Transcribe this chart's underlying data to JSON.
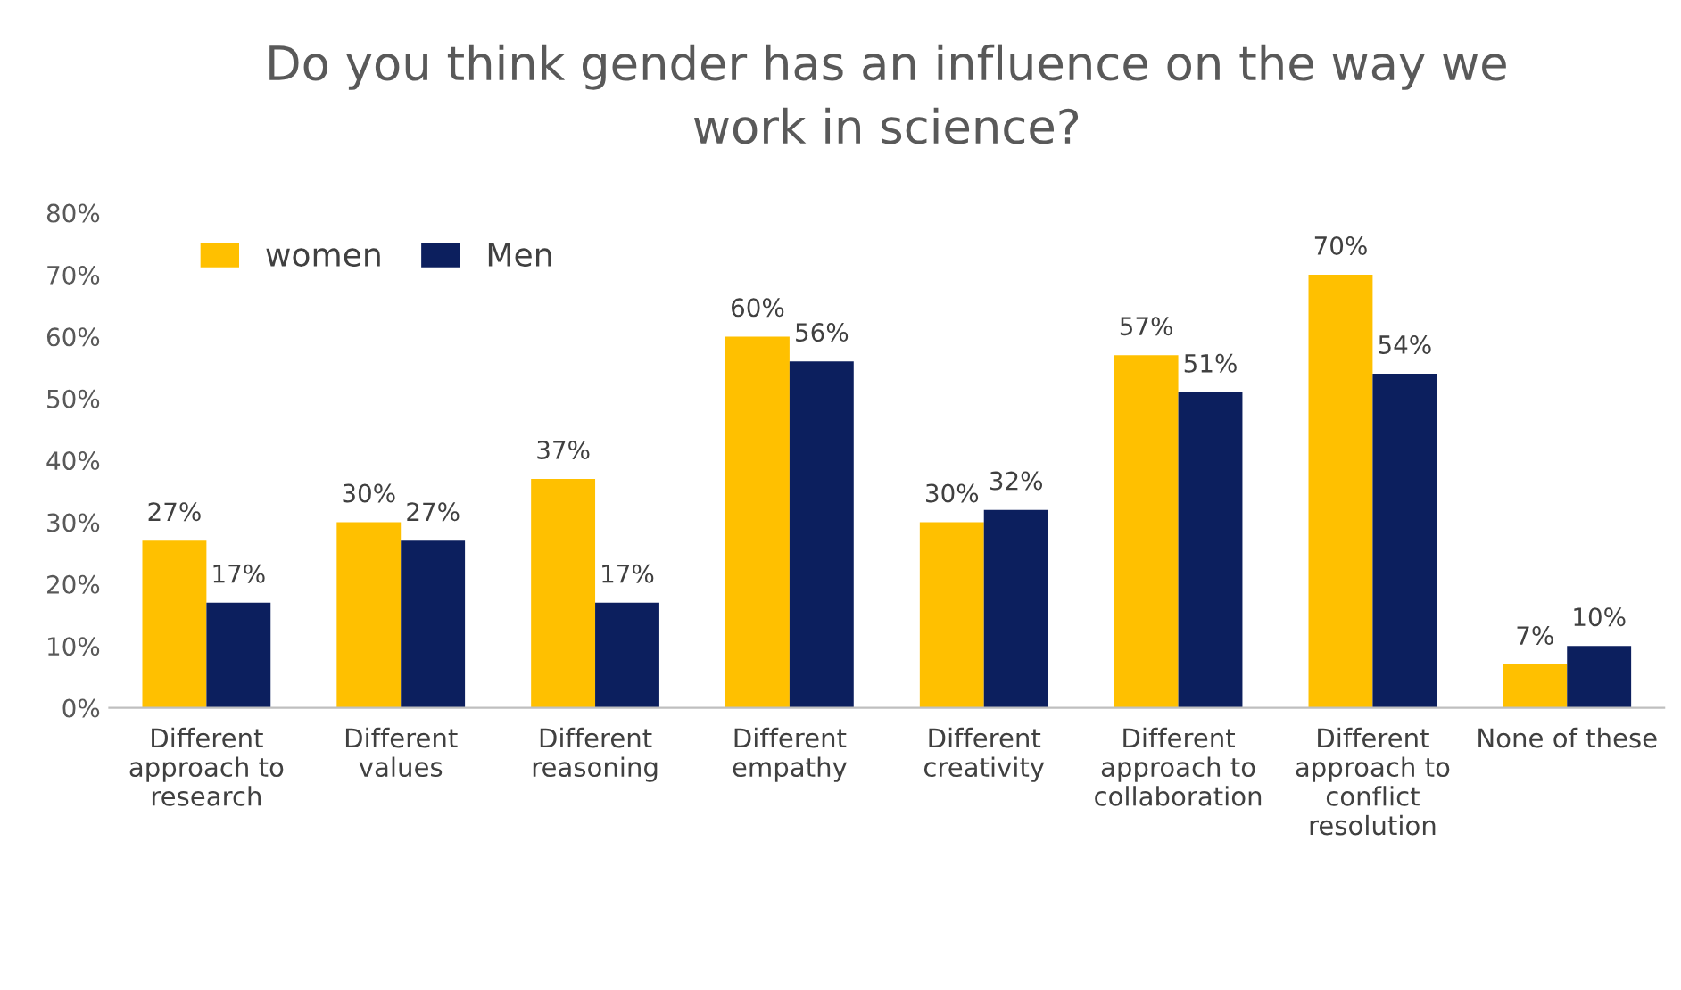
{
  "chart_data": {
    "type": "bar",
    "title": "Do you think gender has an influence on the way we\nwork in science?",
    "categories": [
      "Different\napproach to\nresearch",
      "Different\nvalues",
      "Different\nreasoning",
      "Different\nempathy",
      "Different\ncreativity",
      "Different\napproach to\ncollaboration",
      "Different\napproach to\nconflict\nresolution",
      "None of these"
    ],
    "series": [
      {
        "name": "women",
        "color": "#ffc000",
        "values": [
          27,
          30,
          37,
          60,
          30,
          57,
          70,
          7
        ],
        "value_labels": [
          "27%",
          "30%",
          "37%",
          "60%",
          "30%",
          "57%",
          "70%",
          "7%"
        ]
      },
      {
        "name": "Men",
        "color": "#0c1f5e",
        "values": [
          17,
          27,
          17,
          56,
          32,
          51,
          54,
          10
        ],
        "value_labels": [
          "17%",
          "27%",
          "17%",
          "56%",
          "32%",
          "51%",
          "54%",
          "10%"
        ]
      }
    ],
    "ylim": [
      0,
      80
    ],
    "yticks": [
      {
        "value": 0,
        "label": "0%"
      },
      {
        "value": 10,
        "label": "10%"
      },
      {
        "value": 20,
        "label": "20%"
      },
      {
        "value": 30,
        "label": "30%"
      },
      {
        "value": 40,
        "label": "40%"
      },
      {
        "value": 50,
        "label": "50%"
      },
      {
        "value": 60,
        "label": "60%"
      },
      {
        "value": 70,
        "label": "70%"
      },
      {
        "value": 80,
        "label": "80%"
      }
    ],
    "grid": false,
    "legend": "top left"
  }
}
